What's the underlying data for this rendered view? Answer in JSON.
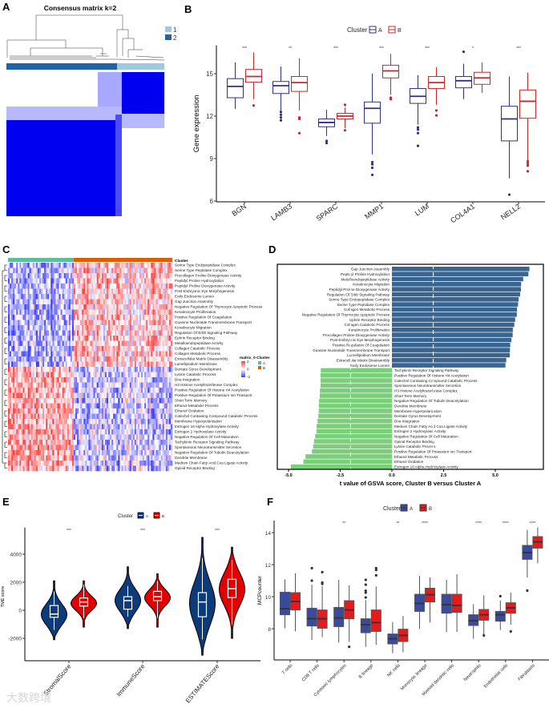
{
  "watermark": "大数跨境",
  "chart_data": [
    {
      "panel": "A",
      "type": "heatmap",
      "title": "Consensus matrix k=2",
      "legend": [
        "1",
        "2"
      ],
      "colors": {
        "1": "#9ecae1",
        "2": "#1f64a6",
        "matrix": "#0000f0"
      }
    },
    {
      "panel": "B",
      "type": "box",
      "ylabel": "Gene expression",
      "ylim": [
        6,
        17
      ],
      "yticks": [
        6,
        9,
        12,
        15
      ],
      "legend": {
        "title": "Cluster",
        "entries": [
          "A",
          "B"
        ]
      },
      "colors": {
        "A": "#2f3185",
        "B": "#c9282e"
      },
      "categories": [
        "BGN",
        "LAMB3",
        "SPARC",
        "MMP1",
        "LUM",
        "COL4A1",
        "NELL2"
      ],
      "significance": [
        "***",
        "**",
        "***",
        "***",
        "***",
        "*",
        "***"
      ],
      "series": [
        {
          "name": "A",
          "boxes": [
            [
              12.5,
              13.3,
              14.1,
              14.65,
              15.8
            ],
            [
              12.4,
              13.6,
              14.15,
              14.45,
              15.5
            ],
            [
              10.6,
              11.25,
              11.55,
              11.8,
              12.45
            ],
            [
              9.3,
              11.5,
              12.55,
              13.0,
              15.0
            ],
            [
              11.4,
              12.9,
              13.4,
              13.95,
              14.9
            ],
            [
              13.2,
              14.0,
              14.5,
              14.8,
              15.7
            ],
            [
              7.6,
              10.25,
              11.8,
              12.7,
              14.8
            ]
          ],
          "outliers": [
            [],
            [
              12.3,
              12.1,
              11.9,
              11.7
            ],
            [
              10.25,
              10.1
            ],
            [
              8.75,
              8.6,
              8.35,
              7.85
            ],
            [
              11.2,
              11.05,
              10.8,
              9.9
            ],
            [
              16.55
            ],
            [
              6.45
            ]
          ]
        },
        {
          "name": "B",
          "boxes": [
            [
              13.2,
              14.4,
              14.8,
              15.3,
              16.5
            ],
            [
              12.4,
              13.75,
              14.37,
              14.8,
              16.1
            ],
            [
              11.15,
              11.8,
              12.0,
              12.2,
              12.6
            ],
            [
              13.5,
              14.7,
              15.2,
              15.6,
              16.4
            ],
            [
              12.8,
              13.95,
              14.37,
              14.8,
              15.45
            ],
            [
              13.65,
              14.25,
              14.7,
              15.1,
              15.8
            ],
            [
              8.9,
              11.85,
              13.05,
              13.85,
              15.07
            ]
          ],
          "outliers": [
            [
              12.75
            ],
            [
              11.9,
              11.8,
              10.8
            ],
            [
              12.8,
              11.0
            ],
            [
              13.3,
              13.2
            ],
            [
              12.4,
              12.05
            ],
            [],
            [
              8.8,
              8.65,
              8.5,
              8.1
            ]
          ]
        }
      ]
    },
    {
      "panel": "C",
      "type": "heatmap",
      "annotation_label": "Cluster",
      "rows": [
        "Serine Type Endopeptidase Complex",
        "Serine Type Peptidase Complex",
        "Procollagen Proline Dioxygenase Activity",
        "Peptidyl Proline Hydroxylation",
        "Peptidyl Proline Dioxygenase Activity",
        "Post Embryonic Eye Morphogenesis",
        "Early Endosome Lumen",
        "Gap Junction Assembly",
        "Negative Regulation Of Thymocyte Apoptotic Process",
        "Keratinocyte Proliferation",
        "Positive Regulation Of Coagulation",
        "Guanine Nucleotide Transmembrane Transport",
        "Keratinocyte Migration",
        "Regulation Of Erbb Signaling Pathway",
        "Ephrin Receptor Binding",
        "Metalloendopeptidase Activity",
        "Collagen Catabolic Process",
        "Collagen Metabolic Process",
        "Extracellular Matrix Disassembly",
        "Lamellipodium Membrane",
        "Dentate Gyrus Development",
        "Lysine Catabolic Process",
        "Dna Integration",
        "H3 Histone Acetyltransferase Complex",
        "Positive Regulation Of Histone H4 Acetylation",
        "Positive Regulation Of Potassium Ion Transport",
        "Short Term Memory",
        "Ethanol Metabolic Process",
        "Ethanol Oxidation",
        "Catechol Containing Compound Catabolic Process",
        "Membrane Hyperpolarization",
        "Estrogen 16 Alpha Hydroxylase Activity",
        "Estrogen 2 Hydroxylase Activity",
        "Negative Regulation Of Cell Maturation",
        "Tachykinin Receptor Signaling Pathway",
        "Spontaneous Neurotransmitter Secretion",
        "Negative Regulation Of Tubulin Deacetylation",
        "Dendrite Membrane",
        "Medium Chain Fatty Acid Coa Ligase Activity",
        "Opioid Receptor Binding"
      ],
      "legend": {
        "title": "matrix_0",
        "ticks": [
          2,
          0,
          -2
        ]
      },
      "cluster_legend": {
        "title": "Cluster",
        "entries": [
          "A",
          "B"
        ]
      },
      "colors": {
        "A": "#5bbf9a",
        "B": "#d95f02",
        "low": "#3c3cff",
        "high": "#ff3c3c"
      }
    },
    {
      "panel": "D",
      "type": "bar",
      "orientation": "horizontal",
      "xlabel": "t value of GSVA score, Cluster B versus Cluster A",
      "xlim": [
        -5.58,
        7.27
      ],
      "xticks": [
        "-5.0",
        "-2.5",
        "0.0",
        "2.5",
        "5.0"
      ],
      "reference_lines": [
        -2,
        2
      ],
      "colors": {
        "up": "#3a6591",
        "down": "#7ccf7a"
      },
      "categories": [
        "Gap Junction Assembly",
        "Peptidyl Proline Hydroxylation",
        "Metalloendopeptidase Activity",
        "Keratinocyte Migration",
        "Peptidyl Proline Dioxygenase Activity",
        "Regulation Of Erbb Signaling Pathway",
        "Serine Type Endopeptidase Complex",
        "Serine Type Peptidase Complex",
        "Collagen Metabolic Process",
        "Negative Regulation Of Thymocyte Apoptotic Process",
        "Ephrin Receptor Binding",
        "Collagen Catabolic Process",
        "Keratinocyte Proliferation",
        "Procollagen Proline Dioxygenase Activity",
        "Post Embryonic Eye Morphogenesis",
        "Positive Regulation Of Coagulation",
        "Guanine Nucleotide Transmembrane Transport",
        "Lamellipodium Membrane",
        "Extracellular Matrix Disassembly",
        "Early Endosome Lumen",
        "Tachykinin Receptor Signaling Pathway",
        "Positive Regulation Of Histone H4 Acetylation",
        "Catechol Containing Compound Catabolic Process",
        "Spontaneous Neurotransmitter Secretion",
        "H3 Histone Acetyltransferase Complex",
        "Short Term Memory",
        "Negative Regulation Of Tubulin Deacetylation",
        "Dendrite Membrane",
        "Membrane Hyperpolarization",
        "Dentate Gyrus Development",
        "Dna Integration",
        "Medium Chain Fatty Acid Coa Ligase Activity",
        "Estrogen 2 Hydroxylase Activity",
        "Negative Regulation Of Cell Maturation",
        "Opioid Receptor Binding",
        "Lysine Catabolic Process",
        "Positive Regulation Of Potassium Ion Transport",
        "Ethanol Metabolic Process",
        "Ethanol Oxidation",
        "Estrogen 16 Alpha Hydroxylase Activity"
      ],
      "values": [
        6.65,
        6.6,
        6.35,
        6.25,
        6.24,
        6.2,
        6.13,
        6.1,
        6.05,
        6.04,
        5.96,
        5.92,
        5.85,
        5.84,
        5.78,
        5.72,
        5.71,
        5.7,
        5.53,
        5.49,
        -3.44,
        -3.45,
        -3.45,
        -3.45,
        -3.48,
        -3.49,
        -3.52,
        -3.53,
        -3.54,
        -3.56,
        -3.6,
        -3.64,
        -3.65,
        -3.71,
        -3.77,
        -3.81,
        -3.87,
        -4.18,
        -4.28,
        -4.89
      ]
    },
    {
      "panel": "E",
      "type": "violin",
      "ylabel": "TME score",
      "ylim": [
        -3400,
        5900
      ],
      "yticks": [
        -2000,
        0,
        2000,
        4000
      ],
      "legend": {
        "title": "Cluster",
        "entries": [
          "A",
          "B"
        ]
      },
      "colors": {
        "A": "#0d3b7a",
        "B": "#e00000"
      },
      "categories": [
        "StromalScore",
        "ImmuneScore",
        "ESTIMATEScore"
      ],
      "significance": [
        "***",
        "***",
        "***"
      ],
      "stats_order": [
        "min",
        "whisker_low",
        "q1",
        "median",
        "q3",
        "whisker_high",
        "max",
        "mode"
      ],
      "series": [
        {
          "name": "A",
          "stats": [
            [
              -2100,
              -1400,
              -500,
              -270,
              340,
              1350,
              2100,
              -300
            ],
            [
              -1300,
              -450,
              80,
              690,
              970,
              1730,
              3100,
              700
            ],
            [
              -3200,
              -2080,
              -460,
              590,
              1260,
              3730,
              5200,
              500
            ]
          ]
        },
        {
          "name": "B",
          "stats": [
            [
              -1200,
              -550,
              300,
              590,
              880,
              1830,
              2100,
              500
            ],
            [
              -1200,
              -550,
              690,
              970,
              1350,
              2100,
              2600,
              900
            ],
            [
              -2000,
              -1030,
              910,
              1540,
              2210,
              3590,
              4500,
              1500
            ]
          ]
        }
      ]
    },
    {
      "panel": "F",
      "type": "box",
      "ylabel": "MCPcounter",
      "ylim": [
        6.05,
        14.75
      ],
      "yticks": [
        8,
        10,
        12,
        14
      ],
      "legend": {
        "title": "Cluster",
        "entries": [
          "A",
          "B"
        ]
      },
      "colors": {
        "A": "#3b4a9a",
        "B": "#e41a1c"
      },
      "categories": [
        "T cells",
        "CD8 T cells",
        "Cytotoxic lymphocytes",
        "B lineage",
        "NK cells",
        "Monocytic lineage",
        "Myeloid dendritic cells",
        "Neutrophils",
        "Endothelial cells",
        "Fibroblasts"
      ],
      "significance": [
        "",
        "",
        "**",
        "",
        "**",
        "****",
        "",
        "****",
        "****",
        "****"
      ],
      "series": [
        {
          "name": "A",
          "boxes": [
            [
              8.03,
              8.87,
              9.25,
              10.28,
              11.08
            ],
            [
              7.3,
              8.17,
              8.63,
              9.28,
              10.75
            ],
            [
              7.13,
              8.13,
              8.67,
              9.33,
              11.05
            ],
            [
              6.87,
              7.75,
              8.25,
              8.62,
              9.78
            ],
            [
              6.47,
              7.05,
              7.37,
              7.67,
              8.42
            ],
            [
              8.0,
              9.08,
              9.58,
              10.15,
              11.3
            ],
            [
              7.78,
              8.97,
              9.5,
              10.15,
              11.05
            ],
            [
              7.37,
              8.2,
              8.5,
              8.87,
              9.53
            ],
            [
              7.92,
              8.47,
              8.87,
              9.08,
              9.75
            ],
            [
              11.2,
              12.33,
              12.75,
              13.2,
              14.17
            ]
          ],
          "outliers": [
            [],
            [
              11.78,
              11.0
            ],
            [],
            [
              11.05,
              10.75,
              10.37,
              10.25,
              9.95
            ],
            [],
            [],
            [],
            [],
            [
              10.03
            ],
            [
              10.38
            ]
          ]
        },
        {
          "name": "B",
          "boxes": [
            [
              7.83,
              9.17,
              9.7,
              10.25,
              11.45
            ],
            [
              7.47,
              8.03,
              8.62,
              9.17,
              10.67
            ],
            [
              7.17,
              8.62,
              9.17,
              9.75,
              10.7
            ],
            [
              7.0,
              7.83,
              8.38,
              9.17,
              10.63
            ],
            [
              6.53,
              7.2,
              7.58,
              7.97,
              8.8
            ],
            [
              8.38,
              9.67,
              10.12,
              10.53,
              11.2
            ],
            [
              7.8,
              9.02,
              9.45,
              10.15,
              11.4
            ],
            [
              7.63,
              8.53,
              8.87,
              9.2,
              10.08
            ],
            [
              8.25,
              8.97,
              9.3,
              9.62,
              10.25
            ],
            [
              12.08,
              13.03,
              13.42,
              13.75,
              14.33
            ]
          ],
          "outliers": [
            [],
            [
              11.53,
              10.88,
              10.8
            ],
            [
              6.87
            ],
            [
              11.78,
              11.67,
              11.33
            ],
            [],
            [],
            [],
            [
              7.58
            ],
            [
              7.83
            ],
            []
          ]
        }
      ]
    }
  ]
}
